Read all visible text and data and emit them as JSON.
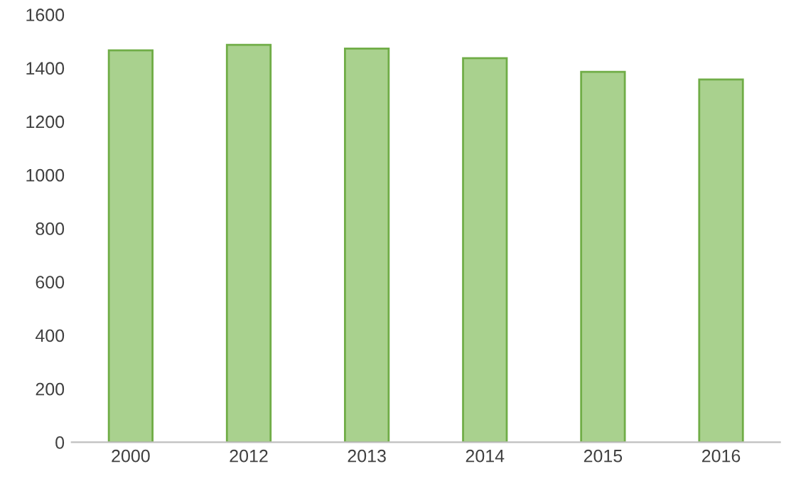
{
  "chart_data": {
    "type": "bar",
    "categories": [
      "2000",
      "2012",
      "2013",
      "2014",
      "2015",
      "2016"
    ],
    "values": [
      1466,
      1487,
      1473,
      1437,
      1386,
      1357
    ],
    "color": "#a9d18e",
    "ylim": [
      0,
      1600
    ],
    "yticks": [
      0,
      200,
      400,
      600,
      800,
      1000,
      1200,
      1400,
      1600
    ],
    "grid": false
  }
}
